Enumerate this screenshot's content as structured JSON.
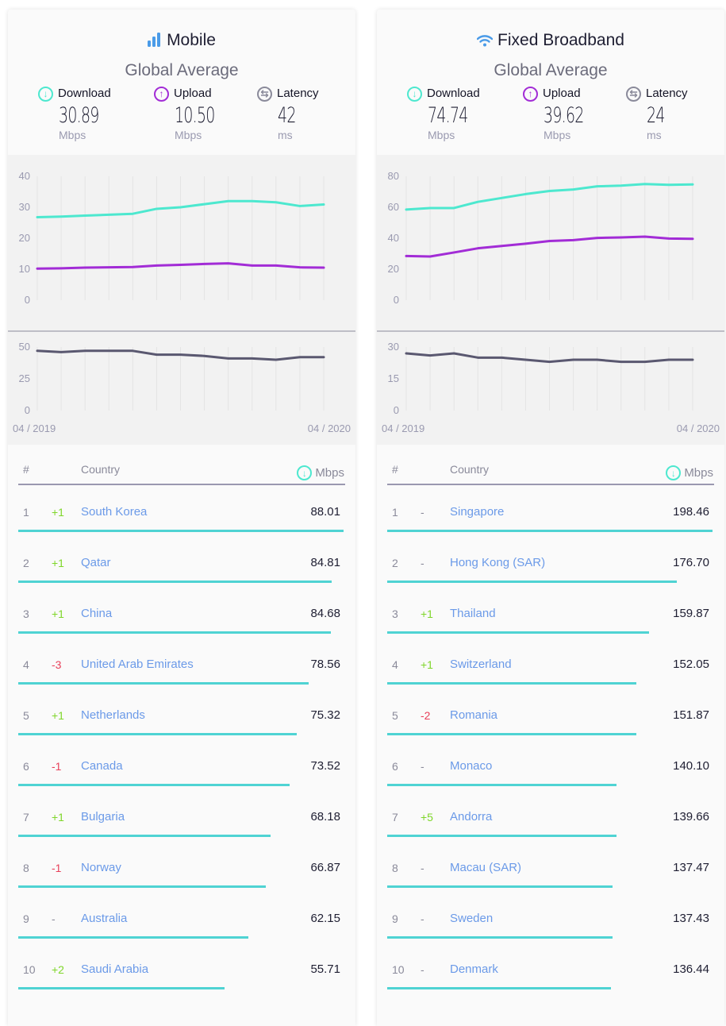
{
  "colors": {
    "download": "#4de8cf",
    "upload": "#a22cd6",
    "latency": "#5a5870",
    "bar": "#4fd3d3",
    "up": "#7fd62a",
    "down": "#e8405a",
    "link": "#6b9ae8"
  },
  "panels": [
    {
      "title": "Mobile",
      "icon": "signal-bars-icon",
      "subtitle": "Global Average",
      "metrics": [
        {
          "label": "Download",
          "value": "30.89",
          "unit": "Mbps"
        },
        {
          "label": "Upload",
          "value": "10.50",
          "unit": "Mbps"
        },
        {
          "label": "Latency",
          "value": "42",
          "unit": "ms"
        }
      ],
      "table_header": {
        "rank": "#",
        "country": "Country",
        "unit": "Mbps"
      },
      "rows": [
        {
          "rank": "1",
          "change": "+1",
          "country": "South Korea",
          "speed": "88.01"
        },
        {
          "rank": "2",
          "change": "+1",
          "country": "Qatar",
          "speed": "84.81"
        },
        {
          "rank": "3",
          "change": "+1",
          "country": "China",
          "speed": "84.68"
        },
        {
          "rank": "4",
          "change": "-3",
          "country": "United Arab Emirates",
          "speed": "78.56"
        },
        {
          "rank": "5",
          "change": "+1",
          "country": "Netherlands",
          "speed": "75.32"
        },
        {
          "rank": "6",
          "change": "-1",
          "country": "Canada",
          "speed": "73.52"
        },
        {
          "rank": "7",
          "change": "+1",
          "country": "Bulgaria",
          "speed": "68.18"
        },
        {
          "rank": "8",
          "change": "-1",
          "country": "Norway",
          "speed": "66.87"
        },
        {
          "rank": "9",
          "change": "-",
          "country": "Australia",
          "speed": "62.15"
        },
        {
          "rank": "10",
          "change": "+2",
          "country": "Saudi Arabia",
          "speed": "55.71"
        }
      ]
    },
    {
      "title": "Fixed Broadband",
      "icon": "wifi-icon",
      "subtitle": "Global Average",
      "metrics": [
        {
          "label": "Download",
          "value": "74.74",
          "unit": "Mbps"
        },
        {
          "label": "Upload",
          "value": "39.62",
          "unit": "Mbps"
        },
        {
          "label": "Latency",
          "value": "24",
          "unit": "ms"
        }
      ],
      "table_header": {
        "rank": "#",
        "country": "Country",
        "unit": "Mbps"
      },
      "rows": [
        {
          "rank": "1",
          "change": "-",
          "country": "Singapore",
          "speed": "198.46"
        },
        {
          "rank": "2",
          "change": "-",
          "country": "Hong Kong (SAR)",
          "speed": "176.70"
        },
        {
          "rank": "3",
          "change": "+1",
          "country": "Thailand",
          "speed": "159.87"
        },
        {
          "rank": "4",
          "change": "+1",
          "country": "Switzerland",
          "speed": "152.05"
        },
        {
          "rank": "5",
          "change": "-2",
          "country": "Romania",
          "speed": "151.87"
        },
        {
          "rank": "6",
          "change": "-",
          "country": "Monaco",
          "speed": "140.10"
        },
        {
          "rank": "7",
          "change": "+5",
          "country": "Andorra",
          "speed": "139.66"
        },
        {
          "rank": "8",
          "change": "-",
          "country": "Macau (SAR)",
          "speed": "137.47"
        },
        {
          "rank": "9",
          "change": "-",
          "country": "Sweden",
          "speed": "137.43"
        },
        {
          "rank": "10",
          "change": "-",
          "country": "Denmark",
          "speed": "136.44"
        }
      ]
    }
  ],
  "chart_data": [
    {
      "type": "line",
      "title": "Mobile",
      "x_start": "04 / 2019",
      "x_end": "04 / 2020",
      "speed_ylim": [
        0,
        40
      ],
      "speed_ticks": [
        "40",
        "30",
        "20",
        "10",
        "0"
      ],
      "latency_ylim": [
        0,
        50
      ],
      "latency_ticks": [
        "50",
        "25",
        "0"
      ],
      "series": [
        {
          "name": "Download",
          "values": [
            26.8,
            27,
            27.3,
            27.6,
            27.9,
            29.5,
            30,
            31,
            32,
            32,
            31.6,
            30.4,
            30.89
          ]
        },
        {
          "name": "Upload",
          "values": [
            10.2,
            10.3,
            10.5,
            10.6,
            10.7,
            11.2,
            11.4,
            11.7,
            11.9,
            11.2,
            11.2,
            10.6,
            10.5
          ]
        },
        {
          "name": "Latency",
          "values": [
            47,
            46,
            47,
            47,
            47,
            44,
            44,
            43,
            41,
            41,
            40,
            42,
            42
          ]
        }
      ]
    },
    {
      "type": "line",
      "title": "Fixed Broadband",
      "x_start": "04 / 2019",
      "x_end": "04 / 2020",
      "speed_ylim": [
        0,
        80
      ],
      "speed_ticks": [
        "80",
        "60",
        "40",
        "20",
        "0"
      ],
      "latency_ylim": [
        0,
        30
      ],
      "latency_ticks": [
        "30",
        "15",
        "0"
      ],
      "series": [
        {
          "name": "Download",
          "values": [
            58.5,
            59.5,
            59.5,
            63.5,
            66,
            68.5,
            70.5,
            71.5,
            73.5,
            74,
            75,
            74.5,
            74.74
          ]
        },
        {
          "name": "Upload",
          "values": [
            28.5,
            28.2,
            30.8,
            33.5,
            35,
            36.5,
            38.2,
            38.8,
            40.2,
            40.5,
            41,
            39.8,
            39.62
          ]
        },
        {
          "name": "Latency",
          "values": [
            27,
            26,
            27,
            25,
            25,
            24,
            23,
            24,
            24,
            23,
            23,
            24,
            24
          ]
        }
      ]
    }
  ]
}
